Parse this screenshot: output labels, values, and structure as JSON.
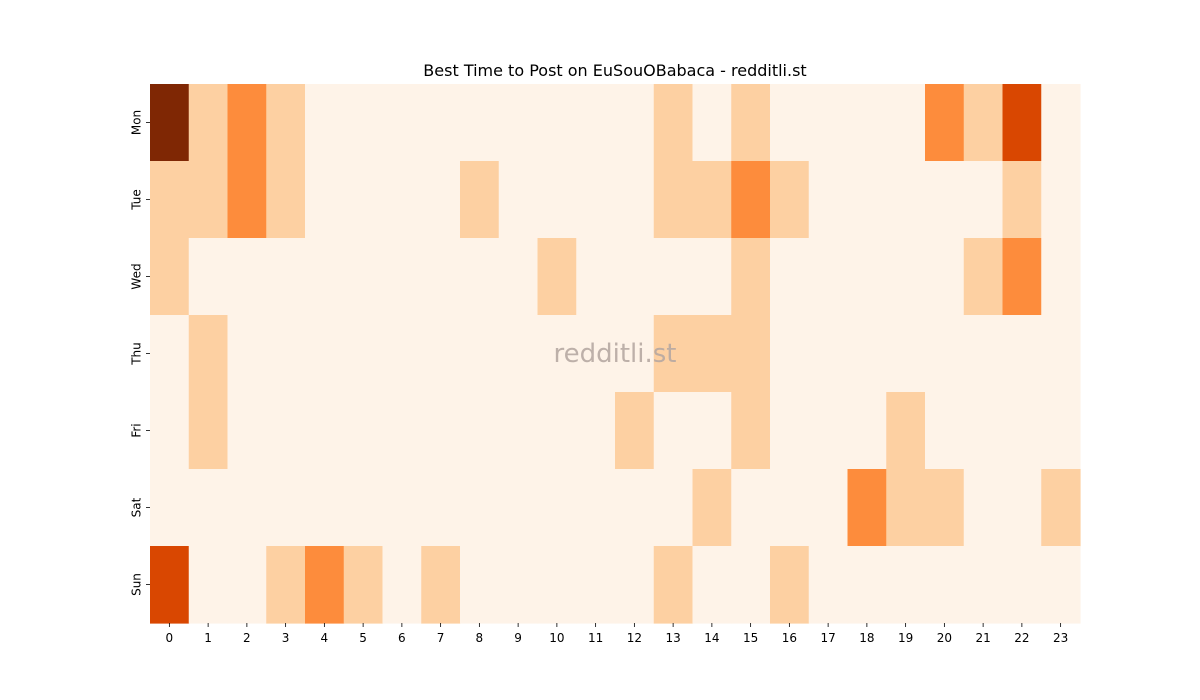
{
  "chart_data": {
    "type": "heatmap",
    "title": "Best Time to Post on EuSouOBabaca - redditli.st",
    "watermark": "redditli.st",
    "x_labels": [
      "0",
      "1",
      "2",
      "3",
      "4",
      "5",
      "6",
      "7",
      "8",
      "9",
      "10",
      "11",
      "12",
      "13",
      "14",
      "15",
      "16",
      "17",
      "18",
      "19",
      "20",
      "21",
      "22",
      "23"
    ],
    "y_labels": [
      "Mon",
      "Tue",
      "Wed",
      "Thu",
      "Fri",
      "Sat",
      "Sun"
    ],
    "levels": 5,
    "values": [
      [
        4,
        1,
        2,
        1,
        0,
        0,
        0,
        0,
        0,
        0,
        0,
        0,
        0,
        1,
        0,
        1,
        0,
        0,
        0,
        0,
        2,
        1,
        3,
        0
      ],
      [
        1,
        1,
        2,
        1,
        0,
        0,
        0,
        0,
        1,
        0,
        0,
        0,
        0,
        1,
        1,
        2,
        1,
        0,
        0,
        0,
        0,
        0,
        1,
        0
      ],
      [
        1,
        0,
        0,
        0,
        0,
        0,
        0,
        0,
        0,
        0,
        1,
        0,
        0,
        0,
        0,
        1,
        0,
        0,
        0,
        0,
        0,
        1,
        2,
        0
      ],
      [
        0,
        1,
        0,
        0,
        0,
        0,
        0,
        0,
        0,
        0,
        0,
        0,
        0,
        1,
        1,
        1,
        0,
        0,
        0,
        0,
        0,
        0,
        0,
        0
      ],
      [
        0,
        1,
        0,
        0,
        0,
        0,
        0,
        0,
        0,
        0,
        0,
        0,
        1,
        0,
        0,
        1,
        0,
        0,
        0,
        1,
        0,
        0,
        0,
        0
      ],
      [
        0,
        0,
        0,
        0,
        0,
        0,
        0,
        0,
        0,
        0,
        0,
        0,
        0,
        0,
        1,
        0,
        0,
        0,
        2,
        1,
        1,
        0,
        0,
        1
      ],
      [
        3,
        0,
        0,
        1,
        2,
        1,
        0,
        1,
        0,
        0,
        0,
        0,
        0,
        1,
        0,
        0,
        1,
        0,
        0,
        0,
        0,
        0,
        0,
        0
      ]
    ],
    "colormap": [
      "#fef3e8",
      "#fdd0a2",
      "#fd8c3c",
      "#d94701",
      "#7f2704"
    ],
    "grid": false,
    "colorbar": false
  }
}
